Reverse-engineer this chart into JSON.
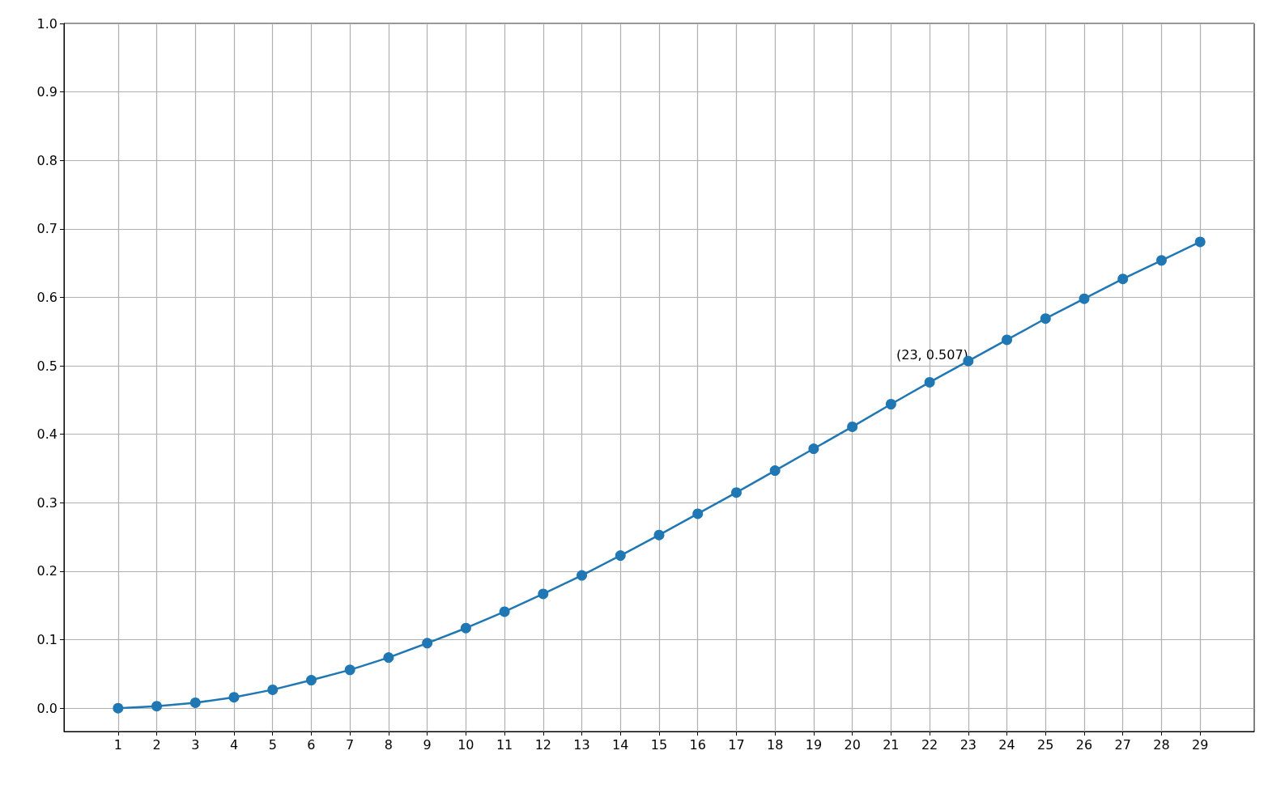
{
  "chart_data": {
    "type": "line",
    "x": [
      1,
      2,
      3,
      4,
      5,
      6,
      7,
      8,
      9,
      10,
      11,
      12,
      13,
      14,
      15,
      16,
      17,
      18,
      19,
      20,
      21,
      22,
      23,
      24,
      25,
      26,
      27,
      28,
      29
    ],
    "series": [
      {
        "color": "#1f77b4",
        "values": [
          0,
          0.003,
          0.008,
          0.016,
          0.027,
          0.041,
          0.056,
          0.074,
          0.095,
          0.117,
          0.141,
          0.167,
          0.194,
          0.223,
          0.253,
          0.284,
          0.315,
          0.347,
          0.379,
          0.411,
          0.444,
          0.476,
          0.507,
          0.538,
          0.569,
          0.598,
          0.627,
          0.654,
          0.681
        ]
      }
    ],
    "xlim": [
      -0.4,
      30.4
    ],
    "xticks": [
      1,
      2,
      3,
      4,
      5,
      6,
      7,
      8,
      9,
      10,
      11,
      12,
      13,
      14,
      15,
      16,
      17,
      18,
      19,
      20,
      21,
      22,
      23,
      24,
      25,
      26,
      27,
      28,
      29
    ],
    "ylim": [
      -0.034,
      1.0
    ],
    "yticks": [
      {
        "value": 0,
        "label": "0.0"
      },
      0.1,
      0.2,
      0.3,
      0.4,
      0.5,
      0.6,
      0.7,
      0.8,
      0.9,
      {
        "value": 1,
        "label": "1.0"
      }
    ],
    "grid": true,
    "marker": "circle",
    "line_style": "solid",
    "annotations": [
      {
        "text": "(23, 0.507)",
        "x": 23,
        "y": 0.507
      }
    ]
  }
}
